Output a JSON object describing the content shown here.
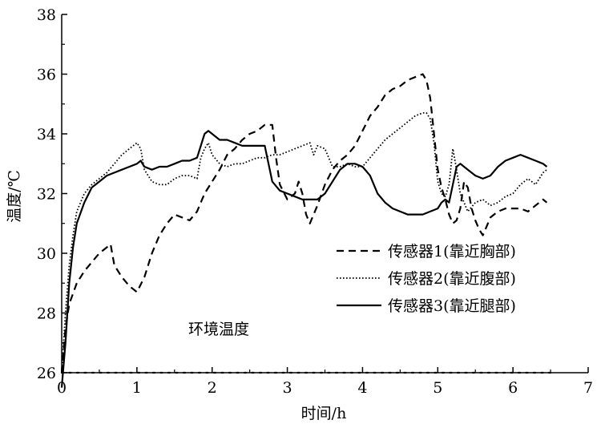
{
  "chart_data": {
    "type": "line",
    "xlabel": "时间/h",
    "ylabel": "温度/℃",
    "xlim": [
      0,
      7
    ],
    "ylim": [
      26,
      38
    ],
    "xticks": [
      0,
      1,
      2,
      3,
      4,
      5,
      6,
      7
    ],
    "yticks": [
      26,
      28,
      30,
      32,
      34,
      36,
      38
    ],
    "grid": false,
    "legend_position": "center-right",
    "series": [
      {
        "name": "传感器1(靠近胸部)",
        "style": "dashed",
        "points": [
          [
            0,
            26.0
          ],
          [
            0.05,
            27.5
          ],
          [
            0.1,
            28.3
          ],
          [
            0.2,
            29.0
          ],
          [
            0.3,
            29.4
          ],
          [
            0.4,
            29.7
          ],
          [
            0.5,
            30.0
          ],
          [
            0.6,
            30.2
          ],
          [
            0.65,
            30.3
          ],
          [
            0.7,
            29.6
          ],
          [
            0.8,
            29.2
          ],
          [
            0.9,
            28.9
          ],
          [
            1.0,
            28.7
          ],
          [
            1.1,
            29.2
          ],
          [
            1.2,
            30.0
          ],
          [
            1.3,
            30.6
          ],
          [
            1.4,
            31.0
          ],
          [
            1.5,
            31.3
          ],
          [
            1.6,
            31.2
          ],
          [
            1.7,
            31.1
          ],
          [
            1.8,
            31.4
          ],
          [
            1.9,
            32.0
          ],
          [
            2.0,
            32.4
          ],
          [
            2.1,
            32.8
          ],
          [
            2.2,
            33.3
          ],
          [
            2.3,
            33.5
          ],
          [
            2.4,
            33.8
          ],
          [
            2.5,
            34.0
          ],
          [
            2.6,
            34.1
          ],
          [
            2.7,
            34.3
          ],
          [
            2.8,
            34.3
          ],
          [
            2.85,
            33.2
          ],
          [
            2.9,
            32.3
          ],
          [
            3.0,
            31.8
          ],
          [
            3.1,
            32.0
          ],
          [
            3.15,
            32.4
          ],
          [
            3.2,
            32.0
          ],
          [
            3.25,
            31.3
          ],
          [
            3.3,
            31.0
          ],
          [
            3.4,
            31.6
          ],
          [
            3.5,
            32.3
          ],
          [
            3.6,
            32.8
          ],
          [
            3.7,
            33.1
          ],
          [
            3.8,
            33.3
          ],
          [
            3.9,
            33.6
          ],
          [
            4.0,
            34.1
          ],
          [
            4.1,
            34.6
          ],
          [
            4.2,
            34.9
          ],
          [
            4.3,
            35.3
          ],
          [
            4.4,
            35.5
          ],
          [
            4.5,
            35.6
          ],
          [
            4.6,
            35.8
          ],
          [
            4.7,
            35.9
          ],
          [
            4.8,
            36.0
          ],
          [
            4.85,
            35.8
          ],
          [
            4.9,
            35.2
          ],
          [
            4.95,
            34.0
          ],
          [
            5.0,
            32.8
          ],
          [
            5.05,
            32.2
          ],
          [
            5.1,
            31.8
          ],
          [
            5.15,
            31.3
          ],
          [
            5.2,
            31.0
          ],
          [
            5.25,
            31.1
          ],
          [
            5.3,
            31.5
          ],
          [
            5.35,
            32.4
          ],
          [
            5.4,
            32.2
          ],
          [
            5.45,
            31.5
          ],
          [
            5.5,
            31.1
          ],
          [
            5.55,
            30.8
          ],
          [
            5.6,
            30.6
          ],
          [
            5.7,
            31.2
          ],
          [
            5.8,
            31.4
          ],
          [
            5.9,
            31.5
          ],
          [
            6.0,
            31.5
          ],
          [
            6.1,
            31.5
          ],
          [
            6.2,
            31.4
          ],
          [
            6.3,
            31.6
          ],
          [
            6.4,
            31.8
          ],
          [
            6.45,
            31.7
          ]
        ]
      },
      {
        "name": "传感器2(靠近腹部)",
        "style": "dotted",
        "points": [
          [
            0,
            26.0
          ],
          [
            0.05,
            28.0
          ],
          [
            0.1,
            29.6
          ],
          [
            0.15,
            30.6
          ],
          [
            0.2,
            31.4
          ],
          [
            0.3,
            32.0
          ],
          [
            0.4,
            32.3
          ],
          [
            0.5,
            32.5
          ],
          [
            0.6,
            32.7
          ],
          [
            0.7,
            33.0
          ],
          [
            0.8,
            33.3
          ],
          [
            0.9,
            33.5
          ],
          [
            1.0,
            33.7
          ],
          [
            1.05,
            33.5
          ],
          [
            1.1,
            32.8
          ],
          [
            1.2,
            32.4
          ],
          [
            1.3,
            32.3
          ],
          [
            1.4,
            32.3
          ],
          [
            1.5,
            32.5
          ],
          [
            1.6,
            32.6
          ],
          [
            1.7,
            32.6
          ],
          [
            1.8,
            32.5
          ],
          [
            1.85,
            33.2
          ],
          [
            1.9,
            33.5
          ],
          [
            1.95,
            33.7
          ],
          [
            2.0,
            33.3
          ],
          [
            2.1,
            33.0
          ],
          [
            2.2,
            32.9
          ],
          [
            2.3,
            33.0
          ],
          [
            2.4,
            33.0
          ],
          [
            2.5,
            33.1
          ],
          [
            2.6,
            33.2
          ],
          [
            2.7,
            33.2
          ],
          [
            2.8,
            33.3
          ],
          [
            2.9,
            33.3
          ],
          [
            3.0,
            33.4
          ],
          [
            3.1,
            33.5
          ],
          [
            3.2,
            33.6
          ],
          [
            3.3,
            33.7
          ],
          [
            3.35,
            33.3
          ],
          [
            3.4,
            33.6
          ],
          [
            3.5,
            33.5
          ],
          [
            3.55,
            33.2
          ],
          [
            3.6,
            32.9
          ],
          [
            3.7,
            32.9
          ],
          [
            3.8,
            33.0
          ],
          [
            3.9,
            32.9
          ],
          [
            4.0,
            32.9
          ],
          [
            4.1,
            33.2
          ],
          [
            4.2,
            33.5
          ],
          [
            4.3,
            33.8
          ],
          [
            4.4,
            34.0
          ],
          [
            4.5,
            34.2
          ],
          [
            4.6,
            34.4
          ],
          [
            4.7,
            34.6
          ],
          [
            4.8,
            34.7
          ],
          [
            4.85,
            34.7
          ],
          [
            4.9,
            34.5
          ],
          [
            4.95,
            33.7
          ],
          [
            5.0,
            32.4
          ],
          [
            5.05,
            32.0
          ],
          [
            5.1,
            31.9
          ],
          [
            5.15,
            32.3
          ],
          [
            5.2,
            33.5
          ],
          [
            5.25,
            32.8
          ],
          [
            5.3,
            32.0
          ],
          [
            5.4,
            31.4
          ],
          [
            5.5,
            31.7
          ],
          [
            5.6,
            31.8
          ],
          [
            5.7,
            31.6
          ],
          [
            5.8,
            31.7
          ],
          [
            5.9,
            31.9
          ],
          [
            6.0,
            32.0
          ],
          [
            6.1,
            32.3
          ],
          [
            6.2,
            32.5
          ],
          [
            6.3,
            32.3
          ],
          [
            6.4,
            32.7
          ],
          [
            6.45,
            32.8
          ]
        ]
      },
      {
        "name": "传感器3(靠近腿部)",
        "style": "solid",
        "points": [
          [
            0,
            25.5
          ],
          [
            0.05,
            27.0
          ],
          [
            0.1,
            29.0
          ],
          [
            0.15,
            30.2
          ],
          [
            0.2,
            31.0
          ],
          [
            0.3,
            31.7
          ],
          [
            0.4,
            32.2
          ],
          [
            0.5,
            32.4
          ],
          [
            0.6,
            32.6
          ],
          [
            0.7,
            32.7
          ],
          [
            0.8,
            32.8
          ],
          [
            0.9,
            32.9
          ],
          [
            1.0,
            33.0
          ],
          [
            1.05,
            33.1
          ],
          [
            1.1,
            32.9
          ],
          [
            1.2,
            32.8
          ],
          [
            1.3,
            32.9
          ],
          [
            1.4,
            32.9
          ],
          [
            1.5,
            33.0
          ],
          [
            1.6,
            33.1
          ],
          [
            1.7,
            33.1
          ],
          [
            1.8,
            33.2
          ],
          [
            1.85,
            33.6
          ],
          [
            1.9,
            34.0
          ],
          [
            1.95,
            34.1
          ],
          [
            2.0,
            34.0
          ],
          [
            2.1,
            33.8
          ],
          [
            2.2,
            33.8
          ],
          [
            2.3,
            33.7
          ],
          [
            2.4,
            33.6
          ],
          [
            2.5,
            33.6
          ],
          [
            2.6,
            33.6
          ],
          [
            2.7,
            33.6
          ],
          [
            2.75,
            33.0
          ],
          [
            2.8,
            32.4
          ],
          [
            2.9,
            32.1
          ],
          [
            3.0,
            32.0
          ],
          [
            3.1,
            31.9
          ],
          [
            3.2,
            31.8
          ],
          [
            3.3,
            31.8
          ],
          [
            3.4,
            31.8
          ],
          [
            3.5,
            32.0
          ],
          [
            3.6,
            32.4
          ],
          [
            3.7,
            32.8
          ],
          [
            3.8,
            33.0
          ],
          [
            3.9,
            33.0
          ],
          [
            4.0,
            32.9
          ],
          [
            4.1,
            32.6
          ],
          [
            4.2,
            32.0
          ],
          [
            4.3,
            31.7
          ],
          [
            4.4,
            31.5
          ],
          [
            4.5,
            31.4
          ],
          [
            4.6,
            31.3
          ],
          [
            4.7,
            31.3
          ],
          [
            4.8,
            31.3
          ],
          [
            4.9,
            31.4
          ],
          [
            5.0,
            31.5
          ],
          [
            5.05,
            31.7
          ],
          [
            5.1,
            31.8
          ],
          [
            5.15,
            31.7
          ],
          [
            5.2,
            32.3
          ],
          [
            5.25,
            32.9
          ],
          [
            5.3,
            33.0
          ],
          [
            5.4,
            32.8
          ],
          [
            5.5,
            32.6
          ],
          [
            5.6,
            32.5
          ],
          [
            5.7,
            32.6
          ],
          [
            5.8,
            32.9
          ],
          [
            5.9,
            33.1
          ],
          [
            6.0,
            33.2
          ],
          [
            6.1,
            33.3
          ],
          [
            6.2,
            33.2
          ],
          [
            6.3,
            33.1
          ],
          [
            6.4,
            33.0
          ],
          [
            6.45,
            32.9
          ]
        ]
      },
      {
        "name": "环境温度",
        "style": "dotted-sparse",
        "points": [
          [
            0,
            26.0
          ],
          [
            6.5,
            26.0
          ]
        ]
      }
    ]
  }
}
